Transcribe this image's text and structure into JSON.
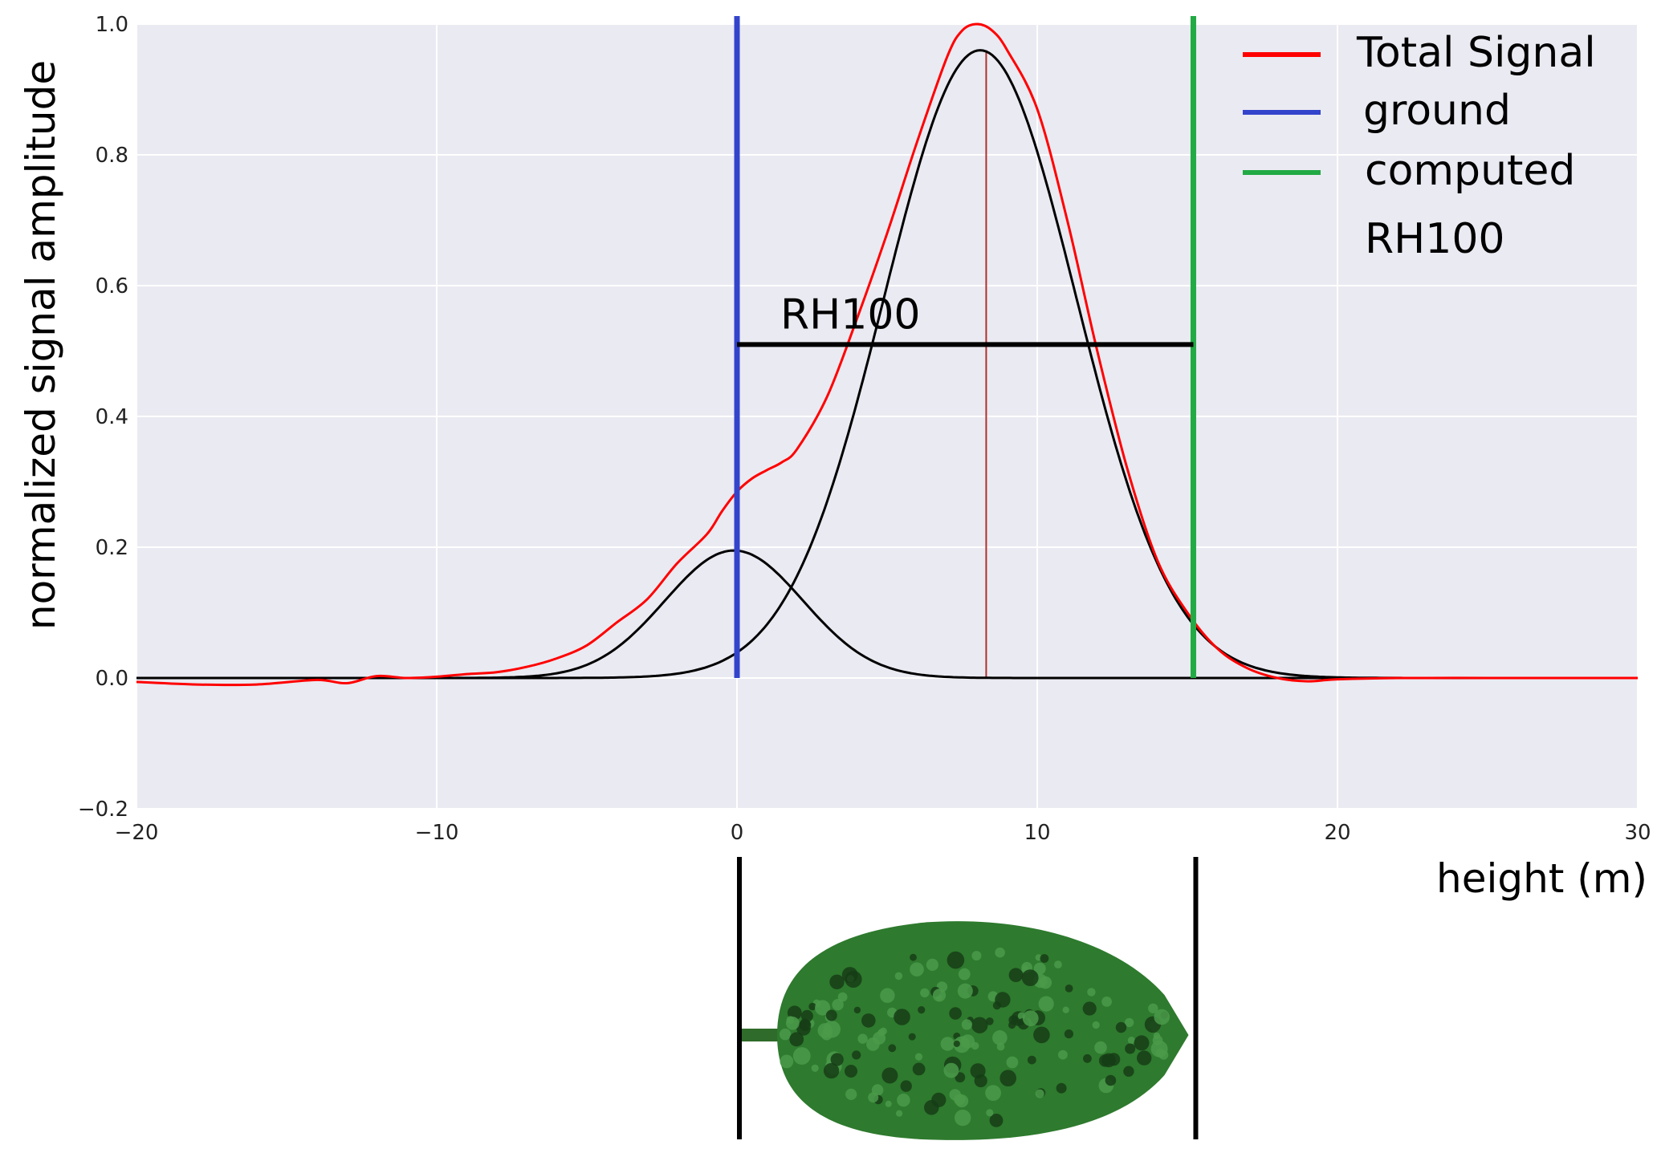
{
  "chart_data": {
    "type": "line",
    "xlabel": "height (m)",
    "ylabel": "normalized signal amplitude",
    "xlim": [
      -20,
      30
    ],
    "ylim": [
      -0.2,
      1.0
    ],
    "xticks": [
      -20,
      -10,
      0,
      10,
      20,
      30
    ],
    "xtick_labels": [
      "−20",
      "−10",
      "0",
      "10",
      "20",
      "30"
    ],
    "yticks": [
      -0.2,
      0.0,
      0.2,
      0.4,
      0.6,
      0.8,
      1.0
    ],
    "ytick_labels": [
      "−0.2",
      "0.0",
      "0.2",
      "0.4",
      "0.6",
      "0.8",
      "1.0"
    ],
    "grid": true,
    "background": "#eaeaf2",
    "legend_position": "top-right",
    "series": [
      {
        "name": "Total Signal",
        "color": "#ff0000",
        "x": [
          -20,
          -18,
          -16,
          -14,
          -13,
          -12,
          -11,
          -10,
          -9,
          -8,
          -7,
          -6,
          -5,
          -4,
          -3,
          -2,
          -1,
          -0.5,
          0,
          0.5,
          1,
          1.5,
          2,
          3,
          4,
          5,
          6,
          7,
          7.5,
          8,
          8.5,
          9,
          10,
          11,
          12,
          13,
          14,
          15,
          16,
          17,
          18,
          19,
          20,
          22,
          25,
          28,
          30
        ],
        "y": [
          -0.006,
          -0.01,
          -0.01,
          -0.003,
          -0.008,
          0.003,
          0.0,
          0.002,
          0.006,
          0.009,
          0.017,
          0.03,
          0.05,
          0.085,
          0.12,
          0.175,
          0.22,
          0.255,
          0.285,
          0.305,
          0.318,
          0.33,
          0.35,
          0.43,
          0.55,
          0.68,
          0.82,
          0.95,
          0.99,
          1.0,
          0.99,
          0.96,
          0.87,
          0.7,
          0.5,
          0.32,
          0.18,
          0.1,
          0.045,
          0.015,
          0.0,
          -0.005,
          -0.002,
          0.0,
          0.0,
          0.0,
          0.0
        ]
      },
      {
        "name": "ground",
        "color": "#3344cc",
        "x": [
          0,
          0
        ],
        "y": [
          0.0,
          1.0
        ]
      },
      {
        "name": "computed RH100",
        "color": "#22aa44",
        "x": [
          15.2,
          15.2
        ],
        "y": [
          0.0,
          1.0
        ]
      }
    ],
    "components": [
      {
        "type": "gaussian",
        "amplitude": 0.195,
        "center": -0.1,
        "sigma": 2.3,
        "color": "#000000"
      },
      {
        "type": "gaussian",
        "amplitude": 0.96,
        "center": 8.1,
        "sigma": 3.2,
        "color": "#000000"
      }
    ],
    "peak_marker": {
      "x": 8.3,
      "color": "#b03030"
    },
    "annotations": [
      {
        "text": "RH100",
        "x_from": 0,
        "x_to": 15.2,
        "y": 0.51
      }
    ],
    "legend": [
      {
        "label": "Total Signal",
        "color": "#ff0000"
      },
      {
        "label": "ground",
        "color": "#3344cc"
      },
      {
        "label": "computed",
        "color": "#22aa44"
      },
      {
        "label": "RH100",
        "color": null
      }
    ]
  },
  "illustration": {
    "name": "tree",
    "left_x": 0,
    "right_x": 15.2,
    "trunk_color": "#2f6b2a",
    "foliage_color": "#2e7a2e",
    "foliage_dark": "#163d16"
  }
}
